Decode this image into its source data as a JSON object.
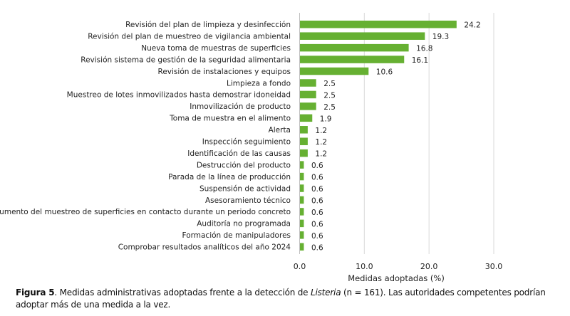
{
  "chart_data": {
    "type": "bar",
    "orientation": "horizontal",
    "categories": [
      "Revisión del plan de limpieza y desinfección",
      "Revisión del plan de muestreo de vigilancia ambiental",
      "Nueva toma de muestras de superficies",
      "Revisión sistema de gestión de la seguridad alimentaria",
      "Revisión de instalaciones y equipos",
      "Limpieza a fondo",
      "Muestreo de lotes inmovilizados hasta demostrar idoneidad",
      "Inmovilización de producto",
      "Toma de muestra en el alimento",
      "Alerta",
      "Inspección seguimiento",
      "Identificación de las causas",
      "Destrucción del producto",
      "Parada de la línea de producción",
      "Suspensión de actividad",
      "Asesoramiento técnico",
      "Aumento del muestreo de superficies en contacto durante un periodo concreto",
      "Auditoría no programada",
      "Formación de manipuladores",
      "Comprobar resultados analíticos del año 2024"
    ],
    "values": [
      24.2,
      19.3,
      16.8,
      16.1,
      10.6,
      2.5,
      2.5,
      2.5,
      1.9,
      1.2,
      1.2,
      1.2,
      0.6,
      0.6,
      0.6,
      0.6,
      0.6,
      0.6,
      0.6,
      0.6
    ],
    "value_labels": [
      "24.2",
      "19.3",
      "16.8",
      "16.1",
      "10.6",
      "2.5",
      "2.5",
      "2.5",
      "1.9",
      "1.2",
      "1.2",
      "1.2",
      "0.6",
      "0.6",
      "0.6",
      "0.6",
      "0.6",
      "0.6",
      "0.6",
      "0.6"
    ],
    "xlabel": "Medidas adoptadas (%)",
    "xlim": [
      0,
      30
    ],
    "xticks": [
      "0.0",
      "10.0",
      "20.0",
      "30.0"
    ],
    "grid": true,
    "bar_color": "#66b032"
  },
  "caption": {
    "label": "Figura 5",
    "text_before": ". Medidas administrativas adoptadas frente a la detección de ",
    "italic": "Listeria",
    "text_after": " (n = 161). Las autoridades competentes podrían adoptar más de una medida a la vez."
  }
}
